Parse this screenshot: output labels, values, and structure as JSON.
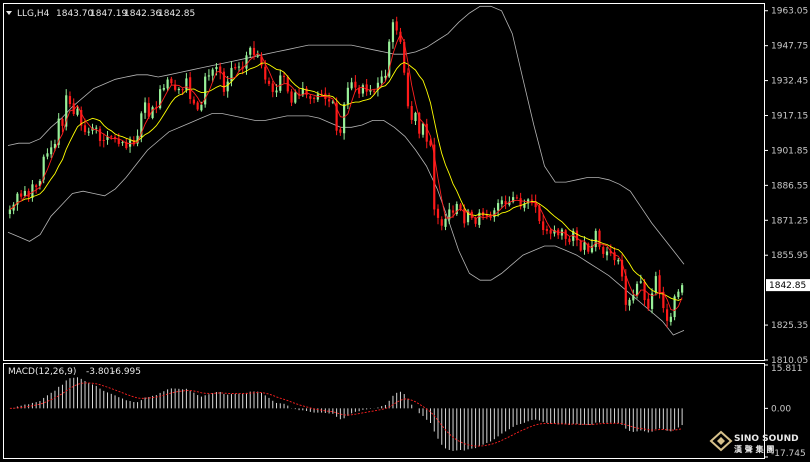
{
  "header": {
    "symbol": "LLG,H4",
    "open": "1843.70",
    "high": "1847.19",
    "low": "1842.36",
    "close": "1842.85"
  },
  "price_axis": {
    "ticks": [
      "1963.05",
      "1947.75",
      "1932.45",
      "1917.15",
      "1901.85",
      "1886.55",
      "1871.25",
      "1855.95",
      "1825.35",
      "1810.05"
    ],
    "current_price": "1842.85"
  },
  "macd": {
    "label": "MACD(12,26,9)",
    "main": "-3.801",
    "signal": "-6.995",
    "ticks": [
      "15.811",
      "0.00",
      "-17.745"
    ]
  },
  "logo": {
    "line1": "SINO SOUND",
    "line2": "漢 聲 集 團"
  },
  "colors": {
    "background": "#000000",
    "bull_candle": "#98f098",
    "bear_candle": "#ff1a1a",
    "ma_fast": "#ffff00",
    "ma_slow": "#ff2020",
    "bollinger": "#b4b4b4",
    "macd_hist": "#d8d8d8",
    "macd_signal": "#ff2020",
    "grid": "#ffffff"
  },
  "chart_data": {
    "type": "candlestick",
    "ylim": [
      1810.05,
      1966
    ],
    "macd_ylim": [
      -17.745,
      15.811
    ],
    "closes": [
      1876.0,
      1878.1,
      1882.9,
      1881.6,
      1884.1,
      1881.5,
      1887.0,
      1885.8,
      1888.5,
      1899.1,
      1900.6,
      1903.2,
      1904.7,
      1915.8,
      1912.6,
      1926.0,
      1922.2,
      1917.8,
      1920.1,
      1912.7,
      1909.9,
      1910.1,
      1911.9,
      1911.8,
      1906.0,
      1906.0,
      1908.0,
      1907.9,
      1906.8,
      1904.7,
      1905.5,
      1902.9,
      1906.3,
      1904.5,
      1908.3,
      1918.1,
      1922.9,
      1916.6,
      1920.8,
      1920.8,
      1928.7,
      1929.2,
      1932.9,
      1931.3,
      1928.4,
      1928.8,
      1928.5,
      1933.4,
      1924.4,
      1922.4,
      1919.8,
      1921.9,
      1934.2,
      1934.7,
      1937.3,
      1938.4,
      1935.9,
      1927.5,
      1932.0,
      1938.0,
      1937.8,
      1938.6,
      1937.7,
      1943.5,
      1946.8,
      1943.7,
      1943.4,
      1939.1,
      1932.9,
      1931.0,
      1927.5,
      1928.1,
      1934.7,
      1934.0,
      1927.7,
      1922.8,
      1927.2,
      1926.0,
      1929.1,
      1926.2,
      1924.5,
      1924.4,
      1926.4,
      1926.6,
      1924.4,
      1923.3,
      1923.2,
      1910.5,
      1909.6,
      1922.1,
      1929.3,
      1931.7,
      1929.4,
      1926.7,
      1930.4,
      1927.6,
      1928.5,
      1927.8,
      1931.5,
      1934.2,
      1934.5,
      1949.5,
      1958.0,
      1954.4,
      1949.4,
      1935.9,
      1921.2,
      1915.2,
      1918.3,
      1909.2,
      1913.6,
      1905.7,
      1904.0,
      1876.0,
      1872.3,
      1868.9,
      1871.9,
      1876.0,
      1874.6,
      1878.4,
      1876.4,
      1869.9,
      1875.5,
      1872.3,
      1869.7,
      1874.6,
      1873.2,
      1873.1,
      1872.3,
      1875.6,
      1878.8,
      1880.0,
      1878.4,
      1879.4,
      1881.4,
      1881.0,
      1877.3,
      1878.6,
      1880.4,
      1880.1,
      1877.0,
      1870.9,
      1867.0,
      1866.6,
      1865.4,
      1867.0,
      1864.7,
      1867.2,
      1863.1,
      1861.7,
      1866.6,
      1862.5,
      1858.0,
      1861.6,
      1857.5,
      1860.1,
      1866.6,
      1859.6,
      1856.5,
      1857.6,
      1856.8,
      1853.8,
      1853.9,
      1846.6,
      1834.2,
      1836.4,
      1838.4,
      1843.4,
      1844.5,
      1836.3,
      1832.6,
      1839.2,
      1846.8,
      1839.6,
      1832.8,
      1827.2,
      1829.0,
      1837.9,
      1840.0,
      1842.85
    ],
    "bb_upper": [
      1904,
      1905,
      1905,
      1907,
      1912,
      1916,
      1921,
      1925,
      1929,
      1931,
      1933,
      1934,
      1935,
      1935,
      1934,
      1935,
      1936,
      1937,
      1938,
      1939,
      1940,
      1941,
      1942,
      1943,
      1944,
      1945,
      1946,
      1947,
      1948,
      1948,
      1948,
      1948,
      1948,
      1947,
      1946,
      1945,
      1944,
      1944,
      1945,
      1947,
      1950,
      1953,
      1958,
      1962,
      1965,
      1965,
      1963,
      1953,
      1933,
      1913,
      1895,
      1888,
      1888,
      1889,
      1890,
      1890,
      1889,
      1887,
      1884,
      1877,
      1870,
      1864,
      1858,
      1852
    ],
    "bb_lower": [
      1866,
      1864,
      1862,
      1865,
      1873,
      1878,
      1883,
      1884,
      1883,
      1882,
      1885,
      1890,
      1896,
      1902,
      1906,
      1910,
      1912,
      1914,
      1916,
      1918,
      1918,
      1917,
      1916,
      1915,
      1915,
      1916,
      1917,
      1917,
      1917,
      1916,
      1914,
      1912,
      1912,
      1913,
      1915,
      1915,
      1912,
      1908,
      1902,
      1895,
      1885,
      1872,
      1858,
      1848,
      1845,
      1845,
      1848,
      1852,
      1856,
      1858,
      1860,
      1860,
      1858,
      1856,
      1853,
      1850,
      1847,
      1843,
      1839,
      1835,
      1831,
      1827,
      1821,
      1823
    ]
  }
}
